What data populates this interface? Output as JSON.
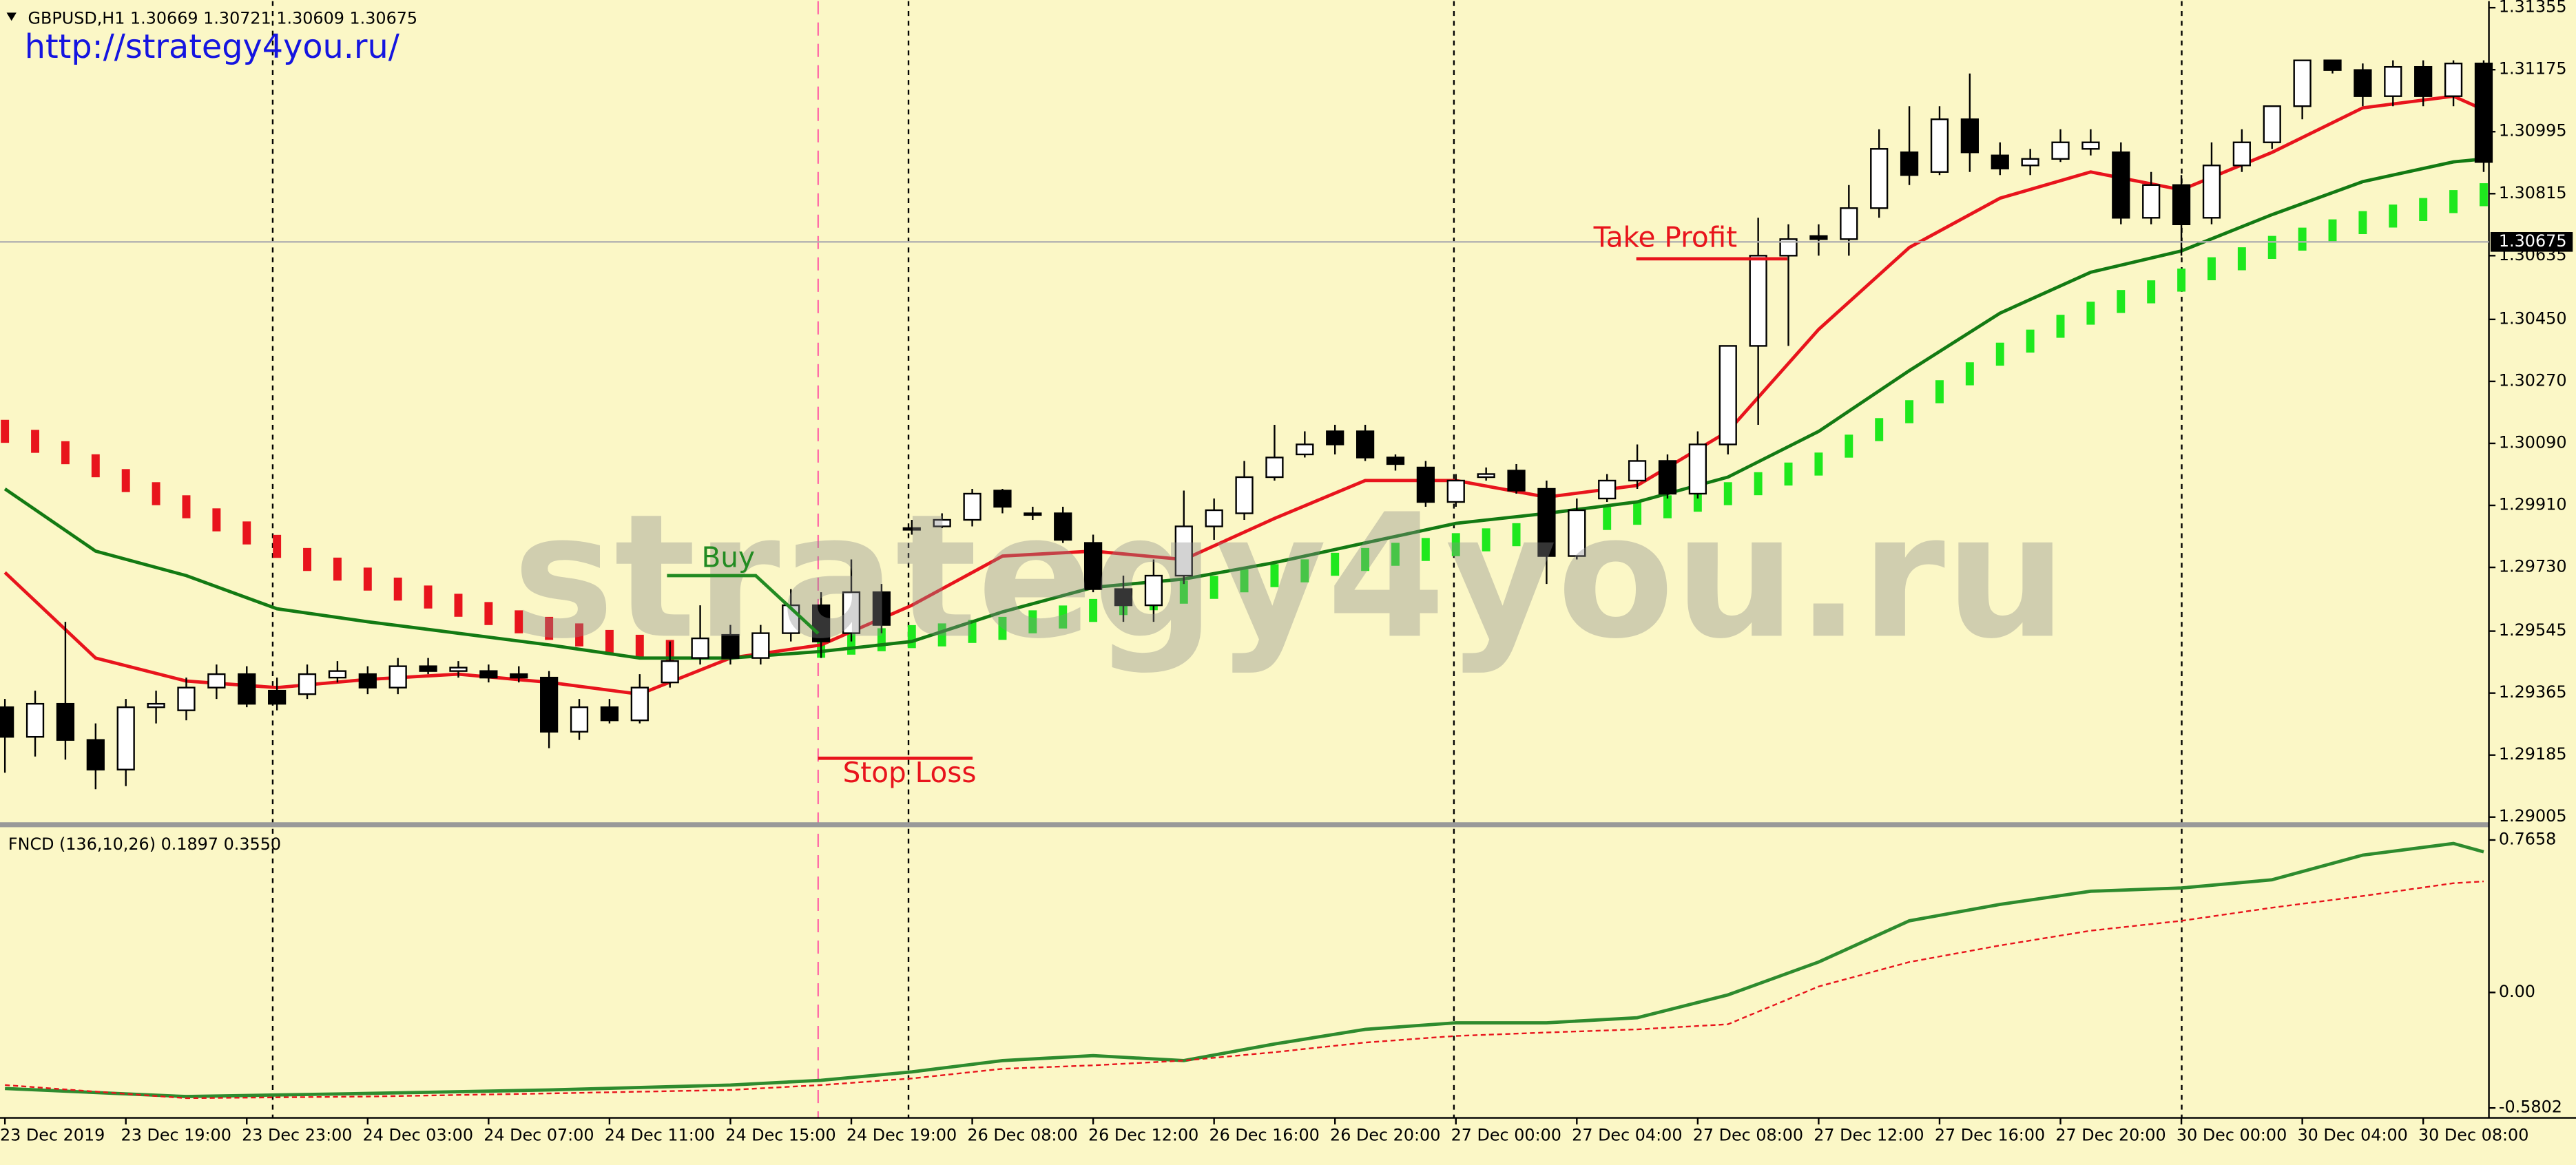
{
  "chart_data": [
    {
      "type": "candlestick",
      "title": "GBPUSD,H1  1.30669 1.30721 1.30609 1.30675",
      "link": "http://strategy4you.ru/",
      "watermark": "strategy4you.ru",
      "categories": [
        "23 Dec 2019",
        null,
        null,
        null,
        "23 Dec 19:00",
        null,
        null,
        null,
        "23 Dec 23:00",
        null,
        null,
        null,
        "24 Dec 03:00",
        null,
        null,
        null,
        "24 Dec 07:00",
        null,
        null,
        null,
        "24 Dec 11:00",
        null,
        null,
        null,
        "24 Dec 15:00",
        null,
        null,
        null,
        "24 Dec 19:00",
        null,
        null,
        null,
        "26 Dec 08:00",
        null,
        null,
        null,
        "26 Dec 12:00",
        null,
        null,
        null,
        "26 Dec 16:00",
        null,
        null,
        null,
        "26 Dec 20:00",
        null,
        null,
        null,
        "27 Dec 00:00",
        null,
        null,
        null,
        "27 Dec 04:00",
        null,
        null,
        null,
        "27 Dec 08:00",
        null,
        null,
        null,
        "27 Dec 12:00",
        null,
        null,
        null,
        "27 Dec 16:00",
        null,
        null,
        null,
        "27 Dec 20:00",
        null,
        null,
        null,
        "30 Dec 00:00",
        null,
        null,
        null,
        "30 Dec 04:00",
        null,
        null,
        null,
        "30 Dec 08:00",
        null,
        null
      ],
      "ohlc": [
        [
          1.29324,
          1.29348,
          1.29134,
          1.29238
        ],
        [
          1.29238,
          1.29372,
          1.29181,
          1.29334
        ],
        [
          1.29334,
          1.29572,
          1.29172,
          1.29229
        ],
        [
          1.29229,
          1.29277,
          1.29086,
          1.29143
        ],
        [
          1.29143,
          1.29348,
          1.29095,
          1.29324
        ],
        [
          1.29324,
          1.29372,
          1.29277,
          1.29334
        ],
        [
          1.29315,
          1.2941,
          1.29286,
          1.29381
        ],
        [
          1.29381,
          1.29448,
          1.29348,
          1.2942
        ],
        [
          1.2942,
          1.29443,
          1.29324,
          1.29334
        ],
        [
          1.29372,
          1.2941,
          1.29315,
          1.29334
        ],
        [
          1.29362,
          1.29448,
          1.29348,
          1.2942
        ],
        [
          1.2941,
          1.29458,
          1.29396,
          1.29429
        ],
        [
          1.2942,
          1.29443,
          1.29362,
          1.29381
        ],
        [
          1.29381,
          1.29467,
          1.29362,
          1.29443
        ],
        [
          1.29443,
          1.29467,
          1.2942,
          1.29429
        ],
        [
          1.29429,
          1.29458,
          1.2941,
          1.29439
        ],
        [
          1.29429,
          1.29448,
          1.29396,
          1.2941
        ],
        [
          1.2942,
          1.29443,
          1.29396,
          1.2941
        ],
        [
          1.2941,
          1.29429,
          1.29205,
          1.29253
        ],
        [
          1.29253,
          1.29348,
          1.29229,
          1.29324
        ],
        [
          1.29324,
          1.29348,
          1.29277,
          1.29286
        ],
        [
          1.29286,
          1.2942,
          1.29277,
          1.29381
        ],
        [
          1.29396,
          1.29515,
          1.29381,
          1.29458
        ],
        [
          1.29467,
          1.2962,
          1.29448,
          1.29524
        ],
        [
          1.29534,
          1.29563,
          1.29448,
          1.29467
        ],
        [
          1.29467,
          1.29563,
          1.29448,
          1.29539
        ],
        [
          1.29539,
          1.29667,
          1.29515,
          1.2962
        ],
        [
          1.2962,
          1.29658,
          1.29467,
          1.29515
        ],
        [
          1.29539,
          1.29753,
          1.29515,
          1.29658
        ],
        [
          1.29658,
          1.29682,
          1.29539,
          1.29563
        ],
        [
          1.29844,
          1.29868,
          1.29825,
          1.29844
        ],
        [
          1.29849,
          1.29887,
          1.29844,
          1.29868
        ],
        [
          1.29868,
          1.29958,
          1.29849,
          1.29944
        ],
        [
          1.29953,
          1.29958,
          1.29887,
          1.29906
        ],
        [
          1.29887,
          1.29906,
          1.29868,
          1.29887
        ],
        [
          1.29887,
          1.29906,
          1.29801,
          1.2981
        ],
        [
          1.29801,
          1.29825,
          1.29658,
          1.29667
        ],
        [
          1.29667,
          1.29706,
          1.29572,
          1.2962
        ],
        [
          1.2962,
          1.29753,
          1.29572,
          1.29706
        ],
        [
          1.29706,
          1.29953,
          1.29682,
          1.29849
        ],
        [
          1.29849,
          1.2993,
          1.2981,
          1.29896
        ],
        [
          1.29887,
          1.30039,
          1.29868,
          1.29992
        ],
        [
          1.29992,
          1.30144,
          1.29982,
          1.30049
        ],
        [
          1.30058,
          1.30125,
          1.30049,
          1.30087
        ],
        [
          1.30125,
          1.30144,
          1.30058,
          1.30087
        ],
        [
          1.30125,
          1.30144,
          1.30039,
          1.30049
        ],
        [
          1.30049,
          1.30058,
          1.30011,
          1.3003
        ],
        [
          1.3002,
          1.30039,
          1.29906,
          1.2992
        ],
        [
          1.2992,
          1.30001,
          1.29906,
          1.29982
        ],
        [
          1.29992,
          1.3002,
          1.29982,
          1.30001
        ],
        [
          1.30011,
          1.3003,
          1.29944,
          1.29953
        ],
        [
          1.29958,
          1.29982,
          1.29682,
          1.29763
        ],
        [
          1.29763,
          1.2993,
          1.29753,
          1.29896
        ],
        [
          1.2993,
          1.30001,
          1.2992,
          1.29982
        ],
        [
          1.29982,
          1.30087,
          1.29958,
          1.30039
        ],
        [
          1.30039,
          1.30058,
          1.2993,
          1.29944
        ],
        [
          1.29944,
          1.30125,
          1.2993,
          1.30087
        ],
        [
          1.30087,
          1.30373,
          1.30058,
          1.30373
        ],
        [
          1.30373,
          1.30745,
          1.30144,
          1.30635
        ],
        [
          1.30635,
          1.30726,
          1.30373,
          1.30683
        ],
        [
          1.30692,
          1.30726,
          1.30635,
          1.30683
        ],
        [
          1.30683,
          1.3084,
          1.30635,
          1.30773
        ],
        [
          1.30773,
          1.31002,
          1.30745,
          1.30945
        ],
        [
          1.30935,
          1.31069,
          1.3084,
          1.30869
        ],
        [
          1.30878,
          1.31069,
          1.30869,
          1.31031
        ],
        [
          1.31031,
          1.31164,
          1.30878,
          1.30935
        ],
        [
          1.30926,
          1.30964,
          1.30869,
          1.30888
        ],
        [
          1.30897,
          1.30945,
          1.30869,
          1.30916
        ],
        [
          1.30916,
          1.31002,
          1.30907,
          1.30964
        ],
        [
          1.30945,
          1.31002,
          1.30926,
          1.30964
        ],
        [
          1.30935,
          1.30964,
          1.30726,
          1.30745
        ],
        [
          1.30745,
          1.30878,
          1.30726,
          1.3084
        ],
        [
          1.3084,
          1.30869,
          1.30635,
          1.30726
        ],
        [
          1.30745,
          1.30964,
          1.30726,
          1.30897
        ],
        [
          1.30897,
          1.31002,
          1.30878,
          1.30964
        ],
        [
          1.30964,
          1.31069,
          1.30945,
          1.31069
        ],
        [
          1.31069,
          1.31202,
          1.31031,
          1.31202
        ],
        [
          1.31202,
          1.31202,
          1.31164,
          1.31174
        ],
        [
          1.31174,
          1.31193,
          1.31069,
          1.31098
        ],
        [
          1.31098,
          1.31202,
          1.31069,
          1.31183
        ],
        [
          1.31183,
          1.31202,
          1.31069,
          1.31098
        ],
        [
          1.31098,
          1.31202,
          1.31069,
          1.31193
        ],
        [
          1.31193,
          1.31202,
          1.30878,
          1.30907
        ]
      ],
      "up_color": "#ffffff",
      "down_color": "#000000",
      "series": [
        {
          "style": "line",
          "color": "#e8141c",
          "x": [
            0,
            3,
            6,
            9,
            12,
            15,
            18,
            21,
            24,
            27,
            30,
            33,
            36,
            39,
            42,
            45,
            48,
            51,
            54,
            57,
            60,
            63,
            66,
            69,
            72,
            75,
            78,
            81,
            82
          ],
          "values": [
            1.29715,
            1.29467,
            1.294,
            1.29381,
            1.29405,
            1.2942,
            1.29396,
            1.29362,
            1.29467,
            1.29505,
            1.2962,
            1.29763,
            1.29777,
            1.29753,
            1.29872,
            1.29982,
            1.29982,
            1.29934,
            1.29968,
            1.30125,
            1.30421,
            1.30659,
            1.30802,
            1.30878,
            1.30826,
            1.30935,
            1.31064,
            1.31098,
            1.31059
          ]
        },
        {
          "style": "line",
          "color": "#137a13",
          "x": [
            0,
            3,
            6,
            9,
            12,
            15,
            18,
            21,
            24,
            27,
            30,
            33,
            36,
            39,
            42,
            45,
            48,
            51,
            54,
            57,
            60,
            63,
            66,
            69,
            72,
            75,
            78,
            81,
            82
          ],
          "values": [
            1.29958,
            1.29777,
            1.29706,
            1.2961,
            1.29572,
            1.29539,
            1.29505,
            1.29467,
            1.29467,
            1.29486,
            1.29515,
            1.29601,
            1.29672,
            1.29696,
            1.29744,
            1.29801,
            1.29858,
            1.29887,
            1.2992,
            1.29992,
            1.30125,
            1.30301,
            1.30468,
            1.30587,
            1.30649,
            1.30754,
            1.3085,
            1.30907,
            1.30916
          ]
        },
        {
          "style": "bar",
          "color": "#e8141c",
          "x": [
            0,
            1,
            2,
            3,
            4,
            5,
            6,
            7,
            8,
            9,
            10,
            11,
            12,
            13,
            14,
            15,
            16,
            17,
            18,
            19,
            20,
            21,
            22
          ],
          "values": [
            1.30125,
            1.30096,
            1.30063,
            1.30025,
            1.29982,
            1.29944,
            1.29906,
            1.29868,
            1.2983,
            1.29791,
            1.29753,
            1.29725,
            1.29696,
            1.29667,
            1.29644,
            1.2962,
            1.29596,
            1.29572,
            1.29553,
            1.29534,
            1.29515,
            1.29501,
            1.29486
          ]
        },
        {
          "style": "bar",
          "color": "#1ee81e",
          "x": [
            27,
            28,
            29,
            30,
            31,
            32,
            33,
            34,
            35,
            36,
            37,
            38,
            39,
            40,
            41,
            42,
            43,
            44,
            45,
            46,
            47,
            48,
            49,
            50,
            51,
            52,
            53,
            54,
            55,
            56,
            57,
            58,
            59,
            60,
            61,
            62,
            63,
            64,
            65,
            66,
            67,
            68,
            69,
            70,
            71,
            72,
            73,
            74,
            75,
            76,
            77,
            78,
            79,
            80,
            81,
            82
          ],
          "values": [
            1.29501,
            1.2951,
            1.2952,
            1.29529,
            1.29534,
            1.29544,
            1.29553,
            1.29572,
            1.29586,
            1.29605,
            1.29625,
            1.29639,
            1.29658,
            1.29672,
            1.29691,
            1.29706,
            1.2972,
            1.29739,
            1.29753,
            1.29768,
            1.29782,
            1.29796,
            1.2981,
            1.29825,
            1.29839,
            1.29853,
            1.29872,
            1.29887,
            1.29906,
            1.29925,
            1.29944,
            1.29973,
            1.30001,
            1.3003,
            1.30082,
            1.3013,
            1.30182,
            1.3024,
            1.30292,
            1.30349,
            1.30387,
            1.3043,
            1.30468,
            1.30502,
            1.3053,
            1.30564,
            1.30597,
            1.30626,
            1.30659,
            1.30683,
            1.30707,
            1.30731,
            1.3075,
            1.30769,
            1.30792,
            1.30812
          ]
        }
      ],
      "ylim": [
        1.2899,
        1.31374
      ],
      "yticks": [
        1.31355,
        1.31175,
        1.30995,
        1.30815,
        1.30635,
        {
          "value": 1.3045,
          "label": "1.30450"
        },
        {
          "value": 1.3027,
          "label": "1.30270"
        },
        {
          "value": 1.3009,
          "label": "1.30090"
        },
        {
          "value": 1.2991,
          "label": "1.29910"
        },
        {
          "value": 1.2973,
          "label": "1.29730"
        },
        1.29545,
        1.29365,
        1.29185,
        1.29005
      ],
      "current_price": 1.30675,
      "annotations": [
        {
          "text": "Buy",
          "value": 1.29706,
          "color": "#228b22"
        },
        {
          "text": "Take Profit",
          "value": 1.30626,
          "color": "#e8141c"
        },
        {
          "text": "Stop Loss",
          "value": 1.29176,
          "color": "#e8141c"
        }
      ]
    },
    {
      "type": "line",
      "title": "FNCD (136,10,26) 0.1897 0.3550",
      "series": [
        {
          "color": "#2e8b2e",
          "dash": false,
          "x": [
            0,
            6,
            12,
            18,
            24,
            27,
            30,
            33,
            36,
            39,
            42,
            45,
            48,
            51,
            54,
            57,
            60,
            63,
            66,
            69,
            72,
            75,
            78,
            81,
            82
          ],
          "values": [
            -0.482,
            -0.523,
            -0.507,
            -0.49,
            -0.465,
            -0.441,
            -0.399,
            -0.342,
            -0.317,
            -0.342,
            -0.259,
            -0.185,
            -0.152,
            -0.152,
            -0.127,
            -0.012,
            0.153,
            0.36,
            0.442,
            0.508,
            0.525,
            0.566,
            0.69,
            0.748,
            0.706
          ]
        },
        {
          "color": "#e8141c",
          "dash": true,
          "x": [
            0,
            6,
            12,
            18,
            24,
            27,
            30,
            33,
            36,
            39,
            42,
            45,
            48,
            51,
            54,
            57,
            60,
            63,
            66,
            69,
            72,
            75,
            78,
            81,
            82
          ],
          "values": [
            -0.465,
            -0.531,
            -0.523,
            -0.507,
            -0.49,
            -0.465,
            -0.432,
            -0.383,
            -0.366,
            -0.342,
            -0.3,
            -0.251,
            -0.218,
            -0.201,
            -0.185,
            -0.16,
            0.03,
            0.153,
            0.236,
            0.31,
            0.36,
            0.426,
            0.484,
            0.549,
            0.558
          ]
        }
      ],
      "ylim": [
        -0.63,
        0.83
      ],
      "yticks": [
        0.7658,
        {
          "value": 0,
          "label": "0.00"
        },
        -0.5802
      ]
    }
  ]
}
